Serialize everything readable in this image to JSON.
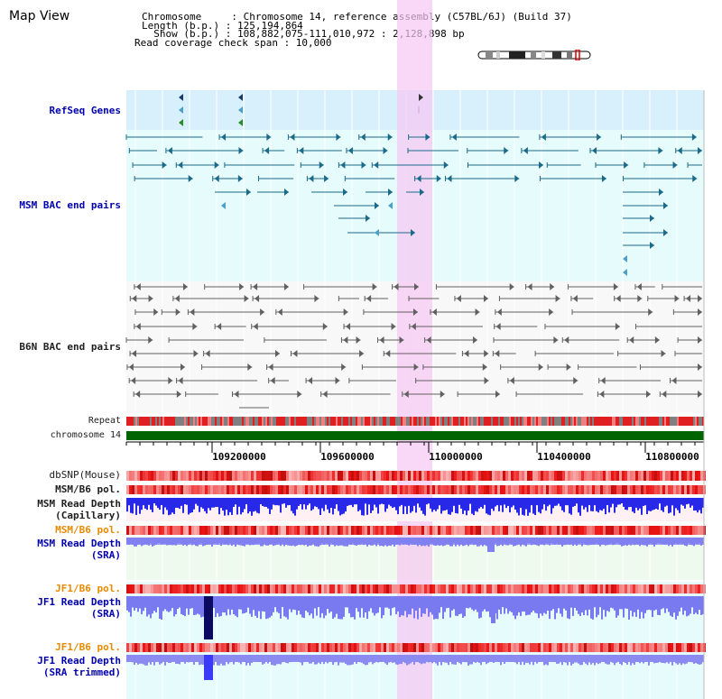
{
  "header": {
    "title": "Map View",
    "info_lines": [
      "Chromosome     : Chromosome 14, reference assembly (C57BL/6J) (Build 37)",
      "Length (b.p.) : 125,194,864",
      "  Show (b.p.) : 108,882,075-111,010,972 : 2,128,898 bp",
      "Read coverage check span : 10,000"
    ]
  },
  "tracks": {
    "refseq_genes": "RefSeq Genes",
    "msm_bac": "MSM BAC end pairs",
    "b6n_bac": "B6N BAC end pairs",
    "repeat": "Repeat",
    "chromosome": "chromosome 14",
    "dbsnp": "dbSNP(Mouse)",
    "msm_b6_pol_1": "MSM/B6 pol.",
    "msm_read_depth_cap_1": "MSM Read Depth",
    "msm_read_depth_cap_2": "(Capillary)",
    "msm_b6_pol_2": "MSM/B6 pol.",
    "msm_read_depth_sra_1": "MSM Read Depth",
    "msm_read_depth_sra_2": "(SRA)",
    "jf1_b6_pol_1": "JF1/B6 pol.",
    "jf1_read_depth_sra_1": "JF1 Read Depth",
    "jf1_read_depth_sra_2": "(SRA)",
    "jf1_b6_pol_2": "JF1/B6 pol.",
    "jf1_read_depth_trim_1": "JF1 Read Depth",
    "jf1_read_depth_trim_2": "(SRA trimmed)"
  },
  "axis": {
    "ticks": [
      "109200000",
      "109600000",
      "110000000",
      "110400000",
      "110800000"
    ]
  },
  "colors": {
    "highlight": "#f8d8f4",
    "refseq_bg": "#d8f0fb",
    "msm_bg": "#e6fbfb",
    "b6n_bg": "#f8f8f8",
    "msm_feature": "#1a6a8a",
    "b6n_feature": "#606060",
    "chromosome": "#006400",
    "depth_blue": "#1f1fe0"
  }
}
